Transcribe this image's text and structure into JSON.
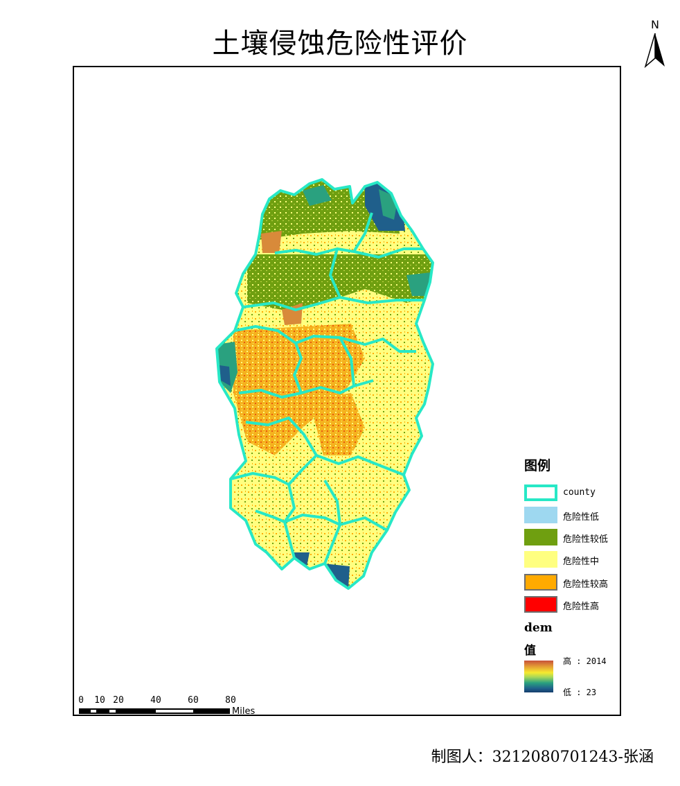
{
  "title": "土壤侵蚀危险性评价",
  "north_arrow": {
    "label": "N"
  },
  "legend": {
    "title": "图例",
    "items": [
      {
        "label": "county",
        "fill": "#ffffff",
        "border": "#27e8c6"
      },
      {
        "label": "危险性低",
        "fill": "#9ed8f0",
        "border": "#9ed8f0"
      },
      {
        "label": "危险性较低",
        "fill": "#6f9f10",
        "border": "#6f9f10"
      },
      {
        "label": "危险性中",
        "fill": "#ffff80",
        "border": "#ffff80"
      },
      {
        "label": "危险性较高",
        "fill": "#ffaa00",
        "border": "#6e6e6e"
      },
      {
        "label": "危险性高",
        "fill": "#ff0000",
        "border": "#6e6e6e"
      }
    ],
    "dem": {
      "title_line1": "dem",
      "title_line2": "值",
      "high_label": "高 : 2014",
      "low_label": "低 : 23"
    }
  },
  "scale_bar": {
    "ticks": [
      "0",
      "10",
      "20",
      "40",
      "60",
      "80"
    ],
    "units": "Miles"
  },
  "credit": "制图人：3212080701243-张涵",
  "colors": {
    "county_border": "#27e8c6",
    "very_low": "#9ed8f0",
    "low": "#6f9f10",
    "medium": "#ffff80",
    "high": "#ffaa00",
    "very_high": "#ff0000",
    "dem_dark": "#1f5f8b",
    "dem_teal": "#2aa17f"
  }
}
